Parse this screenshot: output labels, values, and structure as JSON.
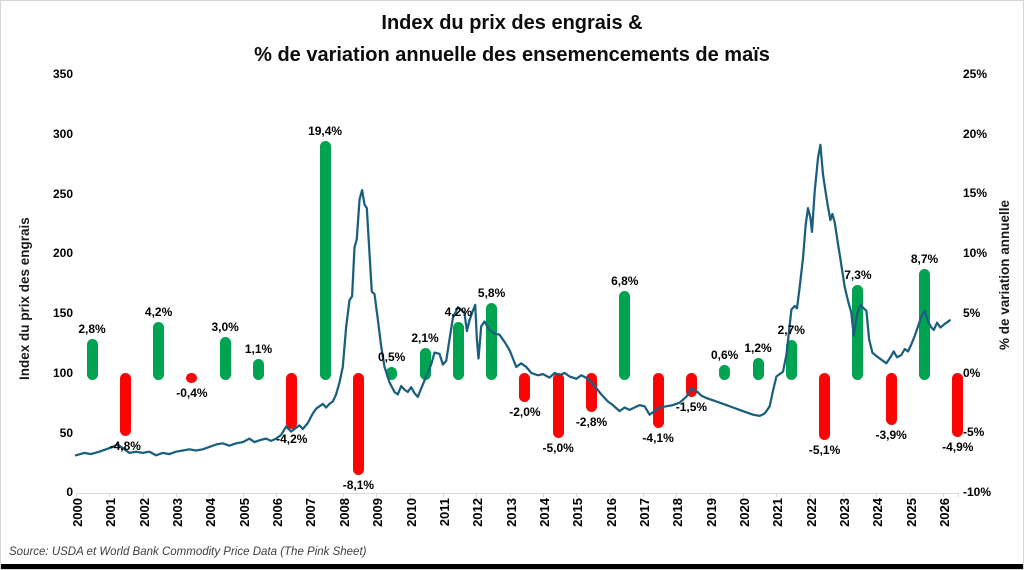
{
  "title": {
    "line1": "Index du prix des engrais &",
    "line2": "% de variation annuelle des ensemencements de maïs"
  },
  "source": "Source: USDA et World Bank Commodity Price Data (The Pink Sheet)",
  "left_axis": {
    "title": "Index du prix des engrais",
    "tick_values": [
      0,
      50,
      100,
      150,
      200,
      250,
      300,
      350
    ],
    "range": [
      0,
      350
    ]
  },
  "right_axis": {
    "title": "% de variation annuelle",
    "tick_values": [
      -10,
      -5,
      0,
      5,
      10,
      15,
      20,
      25
    ],
    "tick_labels": [
      "-10%",
      "-5%",
      "0%",
      "5%",
      "10%",
      "15%",
      "20%",
      "25%"
    ],
    "range": [
      -10,
      25
    ]
  },
  "colors": {
    "bar_positive": "#00a350",
    "bar_negative": "#fa0505",
    "line": "#1a5f7e",
    "axis_line": "#d9d9d9",
    "text": "#000000",
    "source_text": "#3f3f3f"
  },
  "chart_data": {
    "type": "combo",
    "grid": false,
    "legend": "none",
    "left_ylim": [
      0,
      350
    ],
    "right_ylim": [
      -10,
      25
    ],
    "categories": [
      2000,
      2001,
      2002,
      2003,
      2004,
      2005,
      2006,
      2007,
      2008,
      2009,
      2010,
      2011,
      2012,
      2013,
      2014,
      2015,
      2016,
      2017,
      2018,
      2019,
      2020,
      2021,
      2022,
      2023,
      2024,
      2025,
      2026
    ],
    "series": [
      {
        "name": "% de variation annuelle des ensemencements de maïs",
        "type": "bar",
        "axis": "right",
        "unit": "%",
        "values": [
          2.8,
          -4.8,
          4.2,
          -0.4,
          3.0,
          1.1,
          -4.2,
          19.4,
          -8.1,
          0.5,
          2.1,
          4.2,
          5.8,
          -2.0,
          -5.0,
          -2.8,
          6.8,
          -4.1,
          -1.5,
          0.6,
          1.2,
          2.7,
          -5.1,
          7.3,
          -3.9,
          8.7,
          -4.9
        ],
        "labels": [
          "2,8%",
          "-4,8%",
          "4,2%",
          "-0,4%",
          "3,0%",
          "1,1%",
          "-4,2%",
          "19,4%",
          "-8,1%",
          "0,5%",
          "2,1%",
          "4,2%",
          "5,8%",
          "-2,0%",
          "-5,0%",
          "-2,8%",
          "6,8%",
          "-4,1%",
          "-1,5%",
          "0,6%",
          "1,2%",
          "2,7%",
          "-5,1%",
          "7,3%",
          "-3,9%",
          "8,7%",
          "-4,9%"
        ]
      },
      {
        "name": "Index du prix des engrais",
        "type": "line",
        "axis": "left",
        "points": [
          [
            0,
            31
          ],
          [
            0.25,
            33
          ],
          [
            0.45,
            32
          ],
          [
            0.7,
            34
          ],
          [
            0.9,
            36
          ],
          [
            1.1,
            38
          ],
          [
            1.25,
            40
          ],
          [
            1.45,
            36
          ],
          [
            1.6,
            33
          ],
          [
            1.8,
            34
          ],
          [
            2,
            33
          ],
          [
            2.2,
            34
          ],
          [
            2.4,
            31
          ],
          [
            2.6,
            33
          ],
          [
            2.8,
            32
          ],
          [
            3,
            34
          ],
          [
            3.2,
            35
          ],
          [
            3.4,
            36
          ],
          [
            3.6,
            35
          ],
          [
            3.8,
            36
          ],
          [
            4,
            38
          ],
          [
            4.2,
            40
          ],
          [
            4.4,
            41
          ],
          [
            4.6,
            39
          ],
          [
            4.8,
            41
          ],
          [
            5,
            42
          ],
          [
            5.2,
            45
          ],
          [
            5.35,
            42
          ],
          [
            5.55,
            44
          ],
          [
            5.7,
            45
          ],
          [
            5.85,
            43
          ],
          [
            6,
            45
          ],
          [
            6.15,
            48
          ],
          [
            6.3,
            55
          ],
          [
            6.45,
            51
          ],
          [
            6.6,
            54
          ],
          [
            6.7,
            56
          ],
          [
            6.8,
            53
          ],
          [
            6.95,
            58
          ],
          [
            7.1,
            66
          ],
          [
            7.2,
            70
          ],
          [
            7.3,
            72
          ],
          [
            7.4,
            74
          ],
          [
            7.5,
            71
          ],
          [
            7.6,
            74
          ],
          [
            7.7,
            76
          ],
          [
            7.8,
            82
          ],
          [
            7.9,
            92
          ],
          [
            8,
            105
          ],
          [
            8.1,
            138
          ],
          [
            8.2,
            161
          ],
          [
            8.28,
            164
          ],
          [
            8.35,
            205
          ],
          [
            8.42,
            212
          ],
          [
            8.5,
            245
          ],
          [
            8.58,
            253
          ],
          [
            8.65,
            241
          ],
          [
            8.72,
            238
          ],
          [
            8.8,
            200
          ],
          [
            8.87,
            168
          ],
          [
            8.95,
            166
          ],
          [
            9.05,
            145
          ],
          [
            9.15,
            122
          ],
          [
            9.25,
            105
          ],
          [
            9.4,
            92
          ],
          [
            9.55,
            84
          ],
          [
            9.65,
            82
          ],
          [
            9.75,
            89
          ],
          [
            9.85,
            86
          ],
          [
            9.95,
            84
          ],
          [
            10.05,
            88
          ],
          [
            10.15,
            83
          ],
          [
            10.25,
            80
          ],
          [
            10.35,
            87
          ],
          [
            10.5,
            97
          ],
          [
            10.65,
            107
          ],
          [
            10.75,
            117
          ],
          [
            10.9,
            116
          ],
          [
            11,
            107
          ],
          [
            11.1,
            110
          ],
          [
            11.2,
            128
          ],
          [
            11.3,
            146
          ],
          [
            11.45,
            155
          ],
          [
            11.55,
            153
          ],
          [
            11.65,
            150
          ],
          [
            11.72,
            135
          ],
          [
            11.8,
            144
          ],
          [
            11.9,
            152
          ],
          [
            11.97,
            157
          ],
          [
            12.02,
            128
          ],
          [
            12.07,
            112
          ],
          [
            12.15,
            139
          ],
          [
            12.25,
            143
          ],
          [
            12.4,
            136
          ],
          [
            12.55,
            133
          ],
          [
            12.7,
            132
          ],
          [
            12.85,
            126
          ],
          [
            13,
            119
          ],
          [
            13.1,
            112
          ],
          [
            13.2,
            105
          ],
          [
            13.35,
            108
          ],
          [
            13.5,
            105
          ],
          [
            13.65,
            100
          ],
          [
            13.85,
            98
          ],
          [
            14,
            99
          ],
          [
            14.2,
            96
          ],
          [
            14.35,
            100
          ],
          [
            14.5,
            98
          ],
          [
            14.65,
            100
          ],
          [
            14.8,
            97
          ],
          [
            15,
            95
          ],
          [
            15.15,
            98
          ],
          [
            15.35,
            95
          ],
          [
            15.55,
            89
          ],
          [
            15.75,
            82
          ],
          [
            15.95,
            76
          ],
          [
            16.1,
            73
          ],
          [
            16.3,
            68
          ],
          [
            16.45,
            71
          ],
          [
            16.6,
            69
          ],
          [
            16.75,
            71
          ],
          [
            16.9,
            73
          ],
          [
            17.05,
            72
          ],
          [
            17.2,
            65
          ],
          [
            17.35,
            68
          ],
          [
            17.5,
            71
          ],
          [
            17.7,
            72
          ],
          [
            17.9,
            73
          ],
          [
            18.1,
            75
          ],
          [
            18.3,
            80
          ],
          [
            18.45,
            87
          ],
          [
            18.6,
            85
          ],
          [
            18.75,
            81
          ],
          [
            18.9,
            79
          ],
          [
            19.1,
            77
          ],
          [
            19.3,
            75
          ],
          [
            19.5,
            73
          ],
          [
            19.7,
            71
          ],
          [
            19.9,
            69
          ],
          [
            20.1,
            67
          ],
          [
            20.3,
            65
          ],
          [
            20.5,
            64
          ],
          [
            20.65,
            66
          ],
          [
            20.8,
            72
          ],
          [
            20.9,
            85
          ],
          [
            21,
            97
          ],
          [
            21.1,
            99
          ],
          [
            21.2,
            101
          ],
          [
            21.3,
            115
          ],
          [
            21.4,
            140
          ],
          [
            21.45,
            153
          ],
          [
            21.55,
            156
          ],
          [
            21.62,
            154
          ],
          [
            21.7,
            172
          ],
          [
            21.8,
            196
          ],
          [
            21.88,
            224
          ],
          [
            21.95,
            238
          ],
          [
            22.02,
            230
          ],
          [
            22.07,
            218
          ],
          [
            22.15,
            252
          ],
          [
            22.25,
            280
          ],
          [
            22.32,
            291
          ],
          [
            22.4,
            266
          ],
          [
            22.48,
            251
          ],
          [
            22.55,
            239
          ],
          [
            22.62,
            228
          ],
          [
            22.68,
            233
          ],
          [
            22.75,
            226
          ],
          [
            22.85,
            208
          ],
          [
            22.95,
            190
          ],
          [
            23.05,
            172
          ],
          [
            23.15,
            160
          ],
          [
            23.25,
            150
          ],
          [
            23.32,
            131
          ],
          [
            23.42,
            149
          ],
          [
            23.52,
            157
          ],
          [
            23.62,
            154
          ],
          [
            23.7,
            152
          ],
          [
            23.78,
            128
          ],
          [
            23.88,
            117
          ],
          [
            24,
            114
          ],
          [
            24.15,
            111
          ],
          [
            24.3,
            108
          ],
          [
            24.42,
            113
          ],
          [
            24.52,
            118
          ],
          [
            24.62,
            113
          ],
          [
            24.75,
            115
          ],
          [
            24.85,
            120
          ],
          [
            24.95,
            118
          ],
          [
            25.05,
            124
          ],
          [
            25.15,
            131
          ],
          [
            25.25,
            139
          ],
          [
            25.35,
            147
          ],
          [
            25.45,
            152
          ],
          [
            25.55,
            143
          ],
          [
            25.65,
            138
          ],
          [
            25.72,
            136
          ],
          [
            25.82,
            142
          ],
          [
            25.92,
            138
          ],
          [
            26.05,
            141
          ],
          [
            26.2,
            144
          ]
        ]
      }
    ]
  }
}
